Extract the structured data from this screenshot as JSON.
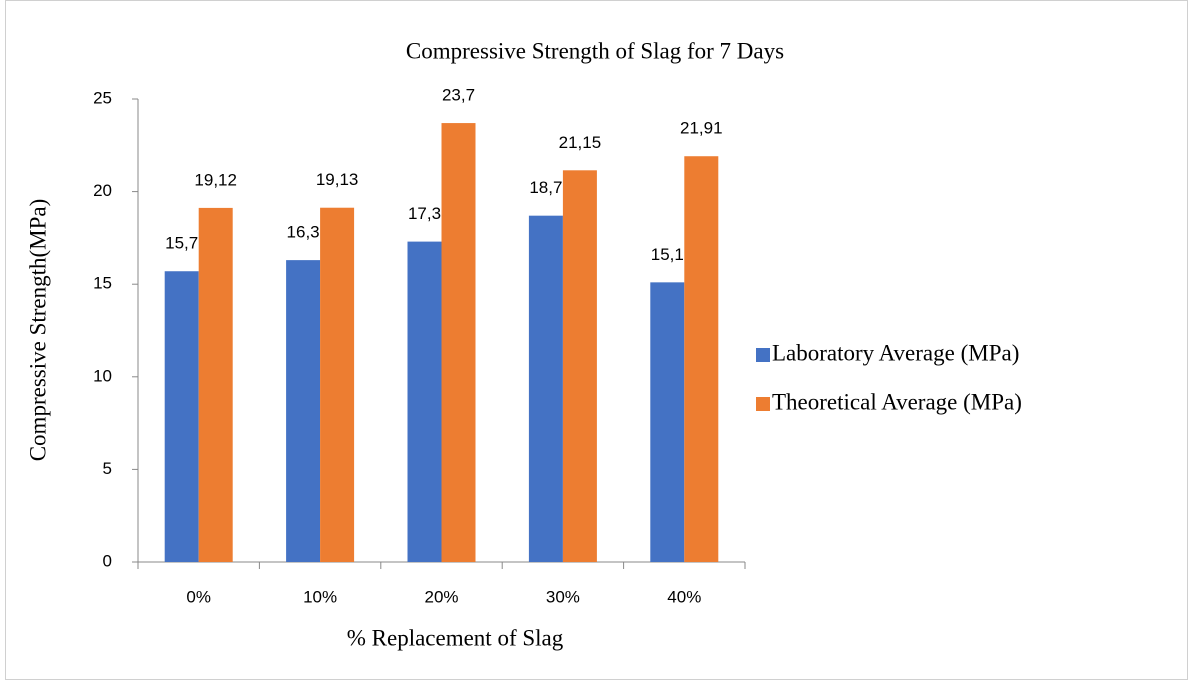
{
  "chart_data": {
    "type": "bar",
    "title": "Compressive Strength of Slag for 7 Days",
    "x_label": "% Replacement of Slag",
    "y_label": "Compressive Strength(MPa)",
    "categories": [
      "0%",
      "10%",
      "20%",
      "30%",
      "40%"
    ],
    "series": [
      {
        "name": "Laboratory  Average (MPa)",
        "color": "#4472c4",
        "values": [
          15.7,
          16.3,
          17.3,
          18.7,
          15.1
        ],
        "value_labels": [
          "15,7",
          "16,3",
          "17,3",
          "18,7",
          "15,1"
        ]
      },
      {
        "name": "Theoretical Average (MPa)",
        "color": "#ed7d31",
        "values": [
          19.12,
          19.13,
          23.7,
          21.15,
          21.91
        ],
        "value_labels": [
          "19,12",
          "19,13",
          "23,7",
          "21,15",
          "21,91"
        ]
      }
    ],
    "ylim": [
      0,
      25
    ],
    "yticks": [
      0,
      5,
      10,
      15,
      20,
      25
    ],
    "grid": false,
    "legend": "right"
  }
}
